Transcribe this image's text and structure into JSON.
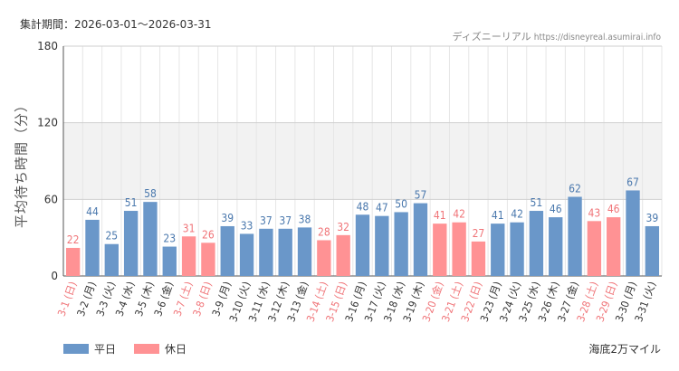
{
  "period_label": "集計期間：2026-03-01〜2026-03-31",
  "source_name": "ディズニーリアル",
  "source_url": "https://disneyreal.asumirai.info",
  "attraction": "海底2万マイル",
  "colors": {
    "weekday": "#6a97c9",
    "holiday": "#ff9294",
    "weekday_text": "#4a78ad",
    "holiday_text": "#f07478",
    "band": "#f2f2f2",
    "grid": "#e6e6e6"
  },
  "chart_data": {
    "type": "bar",
    "ylabel": "平均待ち時間（分）",
    "ylim": [
      0,
      180
    ],
    "yticks": [
      0,
      60,
      120,
      180
    ],
    "grid": true,
    "legend_position": "bottom-left",
    "legend": [
      {
        "key": "weekday",
        "label": "平日"
      },
      {
        "key": "holiday",
        "label": "休日"
      }
    ],
    "categories": [
      "3-1 (日)",
      "3-2 (月)",
      "3-3 (火)",
      "3-4 (水)",
      "3-5 (木)",
      "3-6 (金)",
      "3-7 (土)",
      "3-8 (日)",
      "3-9 (月)",
      "3-10 (火)",
      "3-11 (水)",
      "3-12 (木)",
      "3-13 (金)",
      "3-14 (土)",
      "3-15 (日)",
      "3-16 (月)",
      "3-17 (火)",
      "3-18 (水)",
      "3-19 (木)",
      "3-20 (金)",
      "3-21 (土)",
      "3-22 (日)",
      "3-23 (月)",
      "3-24 (火)",
      "3-25 (水)",
      "3-26 (木)",
      "3-27 (金)",
      "3-28 (土)",
      "3-29 (日)",
      "3-30 (月)",
      "3-31 (火)"
    ],
    "values": [
      22,
      44,
      25,
      51,
      58,
      23,
      31,
      26,
      39,
      33,
      37,
      37,
      38,
      28,
      32,
      48,
      47,
      50,
      57,
      41,
      42,
      27,
      41,
      42,
      51,
      46,
      62,
      43,
      46,
      67,
      39
    ],
    "day_type": [
      "holiday",
      "weekday",
      "weekday",
      "weekday",
      "weekday",
      "weekday",
      "holiday",
      "holiday",
      "weekday",
      "weekday",
      "weekday",
      "weekday",
      "weekday",
      "holiday",
      "holiday",
      "weekday",
      "weekday",
      "weekday",
      "weekday",
      "holiday",
      "holiday",
      "holiday",
      "weekday",
      "weekday",
      "weekday",
      "weekday",
      "weekday",
      "holiday",
      "holiday",
      "weekday",
      "weekday"
    ]
  }
}
